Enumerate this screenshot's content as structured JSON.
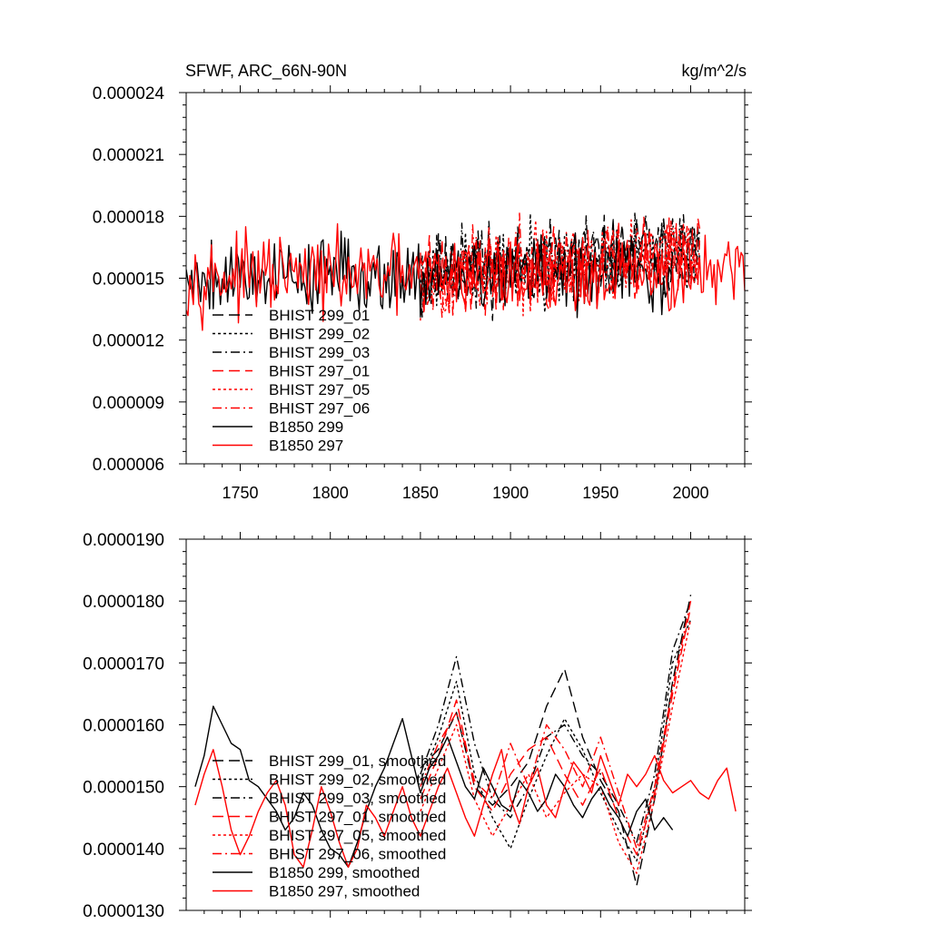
{
  "figure": {
    "title_left": "SFWF, ARC_66N-90N",
    "title_right": "kg/m^2/s"
  },
  "colors": {
    "black": "#000000",
    "red": "#ff0000",
    "background": "#ffffff"
  },
  "chart_data": [
    {
      "type": "line",
      "title": "SFWF, ARC_66N-90N",
      "units_label": "kg/m^2/s",
      "xlim": [
        1720,
        2030
      ],
      "ylim": [
        6e-06,
        2.4e-05
      ],
      "x_ticks": [
        1750,
        1800,
        1850,
        1900,
        1950,
        2000
      ],
      "x_tick_labels": [
        "1750",
        "1800",
        "1850",
        "1900",
        "1950",
        "2000"
      ],
      "y_ticks": [
        6e-06,
        9e-06,
        1.2e-05,
        1.5e-05,
        1.8e-05,
        2.1e-05,
        2.4e-05
      ],
      "y_tick_labels": [
        "0.000006",
        "0.000009",
        "0.000012",
        "0.000015",
        "0.000018",
        "0.000021",
        "0.000024"
      ],
      "legend_position": "lower-left",
      "grid": false,
      "series": [
        {
          "name": "BHIST 299_01",
          "color": "#000000",
          "dash": "long-dash",
          "x_start": 1850,
          "x_end": 2005,
          "level": 1.52e-05,
          "amplitude": 2.8e-06,
          "trend": 1.2e-06,
          "seed": 11
        },
        {
          "name": "BHIST 299_02",
          "color": "#000000",
          "dash": "dot",
          "x_start": 1850,
          "x_end": 2005,
          "level": 1.51e-05,
          "amplitude": 2.7e-06,
          "trend": 1.3e-06,
          "seed": 23
        },
        {
          "name": "BHIST 299_03",
          "color": "#000000",
          "dash": "dash-dot",
          "x_start": 1850,
          "x_end": 2005,
          "level": 1.53e-05,
          "amplitude": 2.9e-06,
          "trend": 1.2e-06,
          "seed": 37
        },
        {
          "name": "BHIST 297_01",
          "color": "#ff0000",
          "dash": "long-dash",
          "x_start": 1850,
          "x_end": 2005,
          "level": 1.5e-05,
          "amplitude": 2.9e-06,
          "trend": 1.3e-06,
          "seed": 41
        },
        {
          "name": "BHIST 297_05",
          "color": "#ff0000",
          "dash": "dot",
          "x_start": 1850,
          "x_end": 2005,
          "level": 1.49e-05,
          "amplitude": 2.8e-06,
          "trend": 1.4e-06,
          "seed": 53
        },
        {
          "name": "BHIST 297_06",
          "color": "#ff0000",
          "dash": "dash-dot",
          "x_start": 1850,
          "x_end": 2005,
          "level": 1.51e-05,
          "amplitude": 2.9e-06,
          "trend": 1.3e-06,
          "seed": 67
        },
        {
          "name": "B1850 299",
          "color": "#000000",
          "dash": "solid",
          "x_start": 1720,
          "x_end": 1990,
          "level": 1.52e-05,
          "amplitude": 2.8e-06,
          "trend": 0.0,
          "seed": 79
        },
        {
          "name": "B1850 297",
          "color": "#ff0000",
          "dash": "solid",
          "x_start": 1720,
          "x_end": 2030,
          "level": 1.51e-05,
          "amplitude": 2.7e-06,
          "trend": 0.0,
          "seed": 97
        }
      ]
    },
    {
      "type": "line",
      "xlim": [
        1720,
        2030
      ],
      "ylim": [
        1.3e-05,
        1.9e-05
      ],
      "x_ticks": [
        1750,
        1800,
        1850,
        1900,
        1950,
        2000
      ],
      "y_ticks": [
        1.3e-05,
        1.4e-05,
        1.5e-05,
        1.6e-05,
        1.7e-05,
        1.8e-05,
        1.9e-05
      ],
      "y_tick_labels": [
        "0.0000130",
        "0.0000140",
        "0.0000150",
        "0.0000160",
        "0.0000170",
        "0.0000180",
        "0.0000190"
      ],
      "legend_position": "lower-left",
      "grid": false,
      "series": [
        {
          "name": "BHIST 299_01, smoothed",
          "color": "#000000",
          "dash": "long-dash",
          "x": [
            1850,
            1860,
            1870,
            1880,
            1890,
            1900,
            1910,
            1920,
            1930,
            1940,
            1950,
            1960,
            1970,
            1980,
            1990,
            2000
          ],
          "y": [
            1.53e-05,
            1.56e-05,
            1.62e-05,
            1.5e-05,
            1.47e-05,
            1.5e-05,
            1.54e-05,
            1.63e-05,
            1.69e-05,
            1.58e-05,
            1.51e-05,
            1.46e-05,
            1.34e-05,
            1.48e-05,
            1.67e-05,
            1.81e-05
          ]
        },
        {
          "name": "BHIST 299_02, smoothed",
          "color": "#000000",
          "dash": "dot",
          "x": [
            1850,
            1860,
            1870,
            1880,
            1890,
            1900,
            1910,
            1920,
            1930,
            1940,
            1950,
            1960,
            1970,
            1980,
            1990,
            2000
          ],
          "y": [
            1.51e-05,
            1.58e-05,
            1.67e-05,
            1.52e-05,
            1.45e-05,
            1.4e-05,
            1.48e-05,
            1.55e-05,
            1.61e-05,
            1.56e-05,
            1.49e-05,
            1.43e-05,
            1.38e-05,
            1.5e-05,
            1.7e-05,
            1.77e-05
          ]
        },
        {
          "name": "BHIST 299_03, smoothed",
          "color": "#000000",
          "dash": "dash-dot",
          "x": [
            1850,
            1860,
            1870,
            1880,
            1890,
            1900,
            1910,
            1920,
            1930,
            1940,
            1950,
            1960,
            1970,
            1980,
            1990,
            2000
          ],
          "y": [
            1.52e-05,
            1.6e-05,
            1.71e-05,
            1.57e-05,
            1.48e-05,
            1.45e-05,
            1.5e-05,
            1.58e-05,
            1.6e-05,
            1.55e-05,
            1.52e-05,
            1.47e-05,
            1.41e-05,
            1.52e-05,
            1.72e-05,
            1.8e-05
          ]
        },
        {
          "name": "BHIST 297_01, smoothed",
          "color": "#ff0000",
          "dash": "long-dash",
          "x": [
            1850,
            1860,
            1870,
            1880,
            1890,
            1900,
            1910,
            1920,
            1930,
            1940,
            1950,
            1960,
            1970,
            1980,
            1990,
            2000
          ],
          "y": [
            1.48e-05,
            1.55e-05,
            1.64e-05,
            1.5e-05,
            1.46e-05,
            1.52e-05,
            1.56e-05,
            1.58e-05,
            1.52e-05,
            1.47e-05,
            1.53e-05,
            1.45e-05,
            1.39e-05,
            1.49e-05,
            1.65e-05,
            1.79e-05
          ]
        },
        {
          "name": "BHIST 297_05, smoothed",
          "color": "#ff0000",
          "dash": "dot",
          "x": [
            1850,
            1860,
            1870,
            1880,
            1890,
            1900,
            1910,
            1920,
            1930,
            1940,
            1950,
            1960,
            1970,
            1980,
            1990,
            2000
          ],
          "y": [
            1.46e-05,
            1.53e-05,
            1.6e-05,
            1.48e-05,
            1.42e-05,
            1.47e-05,
            1.52e-05,
            1.45e-05,
            1.49e-05,
            1.52e-05,
            1.5e-05,
            1.41e-05,
            1.36e-05,
            1.48e-05,
            1.63e-05,
            1.77e-05
          ]
        },
        {
          "name": "BHIST 297_06, smoothed",
          "color": "#ff0000",
          "dash": "dash-dot",
          "x": [
            1850,
            1860,
            1870,
            1880,
            1890,
            1900,
            1910,
            1920,
            1930,
            1940,
            1950,
            1960,
            1970,
            1980,
            1990,
            2000
          ],
          "y": [
            1.5e-05,
            1.57e-05,
            1.62e-05,
            1.51e-05,
            1.48e-05,
            1.57e-05,
            1.5e-05,
            1.6e-05,
            1.56e-05,
            1.5e-05,
            1.58e-05,
            1.49e-05,
            1.4e-05,
            1.5e-05,
            1.66e-05,
            1.8e-05
          ]
        },
        {
          "name": "B1850 299, smoothed",
          "color": "#000000",
          "dash": "solid",
          "x": [
            1725,
            1730,
            1735,
            1740,
            1745,
            1750,
            1755,
            1760,
            1765,
            1770,
            1775,
            1780,
            1785,
            1790,
            1795,
            1800,
            1805,
            1810,
            1815,
            1820,
            1825,
            1830,
            1835,
            1840,
            1845,
            1850,
            1855,
            1860,
            1865,
            1870,
            1875,
            1880,
            1885,
            1890,
            1895,
            1900,
            1905,
            1910,
            1915,
            1920,
            1925,
            1930,
            1935,
            1940,
            1945,
            1950,
            1955,
            1960,
            1965,
            1970,
            1975,
            1980,
            1985,
            1990
          ],
          "y": [
            1.5e-05,
            1.55e-05,
            1.63e-05,
            1.6e-05,
            1.57e-05,
            1.56e-05,
            1.51e-05,
            1.5e-05,
            1.48e-05,
            1.46e-05,
            1.43e-05,
            1.45e-05,
            1.49e-05,
            1.47e-05,
            1.43e-05,
            1.4e-05,
            1.39e-05,
            1.37e-05,
            1.41e-05,
            1.46e-05,
            1.5e-05,
            1.53e-05,
            1.57e-05,
            1.61e-05,
            1.55e-05,
            1.49e-05,
            1.53e-05,
            1.55e-05,
            1.58e-05,
            1.54e-05,
            1.5e-05,
            1.48e-05,
            1.53e-05,
            1.5e-05,
            1.47e-05,
            1.46e-05,
            1.51e-05,
            1.49e-05,
            1.46e-05,
            1.48e-05,
            1.52e-05,
            1.5e-05,
            1.47e-05,
            1.45e-05,
            1.48e-05,
            1.5e-05,
            1.47e-05,
            1.45e-05,
            1.42e-05,
            1.46e-05,
            1.48e-05,
            1.43e-05,
            1.45e-05,
            1.43e-05
          ]
        },
        {
          "name": "B1850 297, smoothed",
          "color": "#ff0000",
          "dash": "solid",
          "x": [
            1725,
            1730,
            1735,
            1740,
            1745,
            1750,
            1755,
            1760,
            1765,
            1770,
            1775,
            1780,
            1785,
            1790,
            1795,
            1800,
            1805,
            1810,
            1815,
            1820,
            1825,
            1830,
            1835,
            1840,
            1845,
            1850,
            1855,
            1860,
            1865,
            1870,
            1875,
            1880,
            1885,
            1890,
            1895,
            1900,
            1905,
            1910,
            1915,
            1920,
            1925,
            1930,
            1935,
            1940,
            1945,
            1950,
            1955,
            1960,
            1965,
            1970,
            1975,
            1980,
            1985,
            1990,
            1995,
            2000,
            2005,
            2010,
            2015,
            2020,
            2025
          ],
          "y": [
            1.47e-05,
            1.52e-05,
            1.56e-05,
            1.5e-05,
            1.43e-05,
            1.39e-05,
            1.42e-05,
            1.46e-05,
            1.49e-05,
            1.51e-05,
            1.47e-05,
            1.39e-05,
            1.37e-05,
            1.43e-05,
            1.5e-05,
            1.46e-05,
            1.41e-05,
            1.37e-05,
            1.4e-05,
            1.47e-05,
            1.45e-05,
            1.42e-05,
            1.46e-05,
            1.5e-05,
            1.45e-05,
            1.42e-05,
            1.46e-05,
            1.5e-05,
            1.53e-05,
            1.49e-05,
            1.45e-05,
            1.42e-05,
            1.47e-05,
            1.52e-05,
            1.56e-05,
            1.48e-05,
            1.44e-05,
            1.5e-05,
            1.53e-05,
            1.47e-05,
            1.45e-05,
            1.5e-05,
            1.54e-05,
            1.52e-05,
            1.49e-05,
            1.55e-05,
            1.51e-05,
            1.47e-05,
            1.52e-05,
            1.5e-05,
            1.52e-05,
            1.55e-05,
            1.51e-05,
            1.49e-05,
            1.5e-05,
            1.51e-05,
            1.49e-05,
            1.48e-05,
            1.51e-05,
            1.53e-05,
            1.46e-05
          ]
        }
      ]
    }
  ]
}
